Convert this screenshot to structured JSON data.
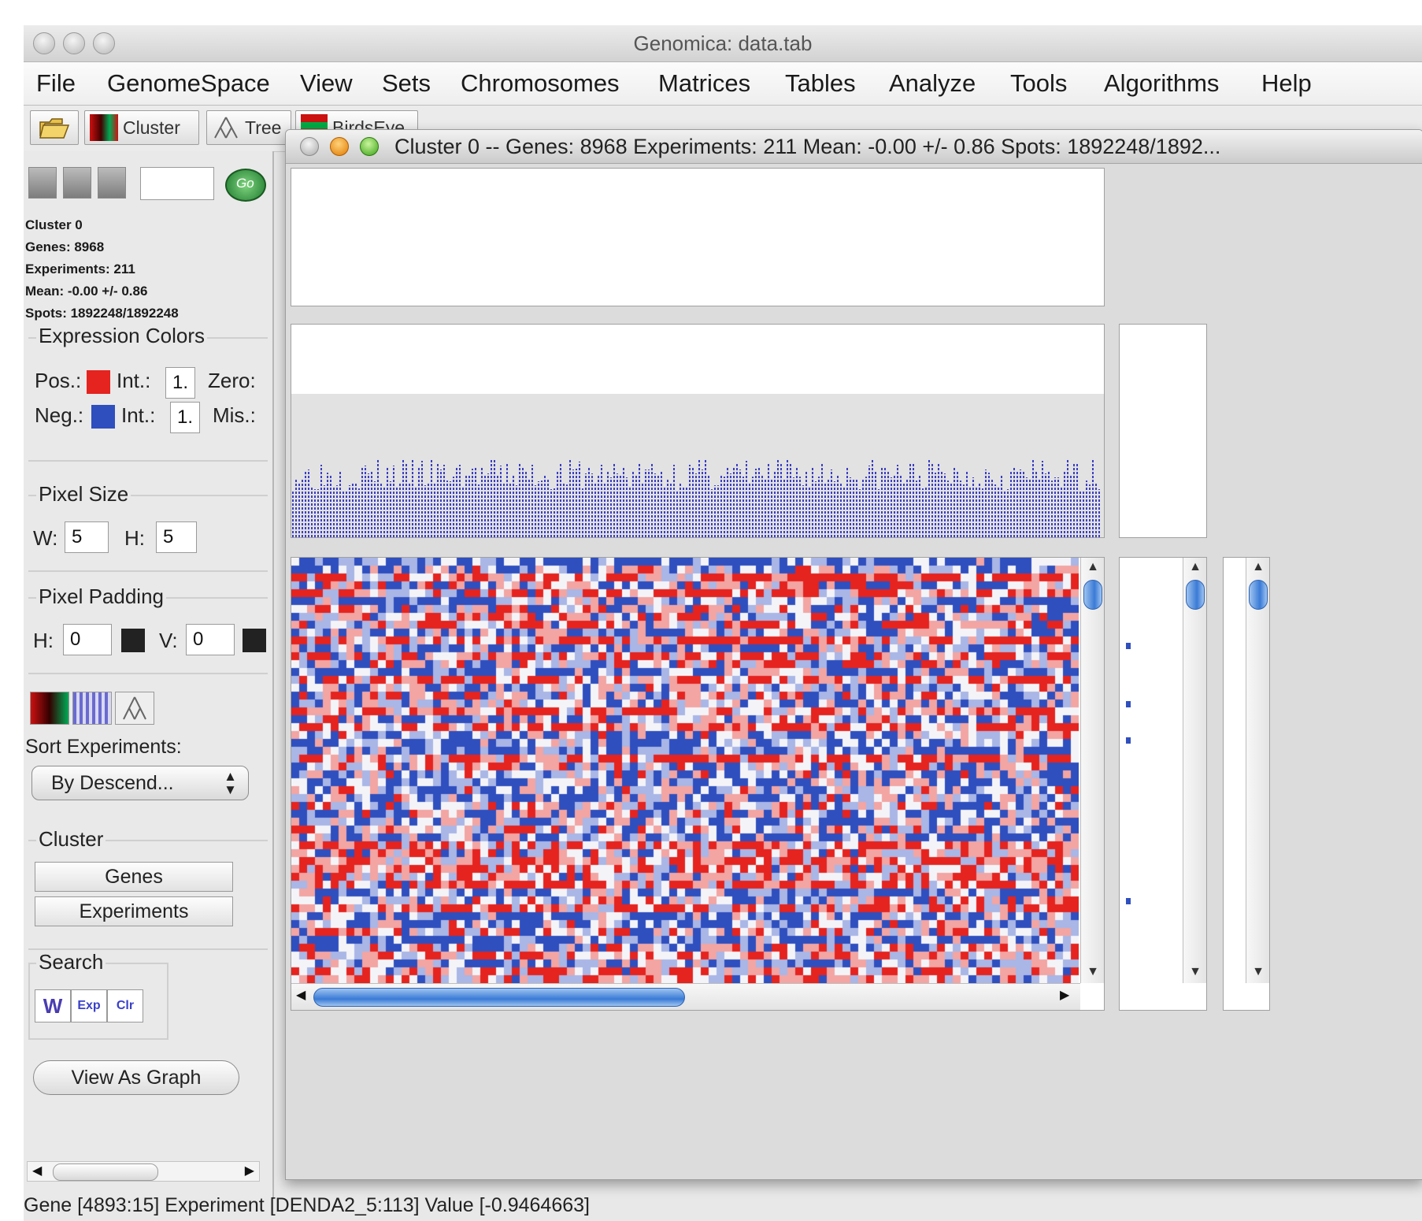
{
  "window": {
    "title": "Genomica: data.tab"
  },
  "menu": [
    "File",
    "GenomeSpace",
    "View",
    "Sets",
    "Chromosomes",
    "Matrices",
    "Tables",
    "Analyze",
    "Tools",
    "Algorithms",
    "Help"
  ],
  "toolbar": {
    "open_icon": "folder-open-icon",
    "cluster_label": "Cluster",
    "tree_label": "Tree",
    "birdseye_label": "BirdsEye"
  },
  "left_panel": {
    "cluster_info": {
      "name": "Cluster 0",
      "genes": "Genes: 8968",
      "experiments": "Experiments: 211",
      "mean": "Mean: -0.00 +/- 0.86",
      "spots": "Spots: 1892248/1892248"
    },
    "expression_colors": {
      "title": "Expression Colors",
      "pos_label": "Pos.:",
      "pos_color": "#e5231f",
      "pos_int_label": "Int.:",
      "pos_int_value": "1.",
      "zero_label": "Zero:",
      "neg_label": "Neg.:",
      "neg_color": "#2f4fbf",
      "neg_int_label": "Int.:",
      "neg_int_value": "1.",
      "mis_label": "Mis.:"
    },
    "pixel_size": {
      "title": "Pixel Size",
      "w_label": "W:",
      "w_value": "5",
      "h_label": "H:",
      "h_value": "5"
    },
    "pixel_padding": {
      "title": "Pixel Padding",
      "h_label": "H:",
      "h_value": "0",
      "v_label": "V:",
      "v_value": "0"
    },
    "sort_experiments": {
      "label": "Sort Experiments:",
      "selected": "By Descend..."
    },
    "cluster_group": {
      "title": "Cluster",
      "genes_button": "Genes",
      "experiments_button": "Experiments"
    },
    "search_group": {
      "title": "Search"
    },
    "view_as_graph": "View As Graph"
  },
  "cluster_window": {
    "title": "Cluster 0 -- Genes: 8968 Experiments: 211 Mean: -0.00 +/- 0.86 Spots: 1892248/1892..."
  },
  "heatmap": {
    "positive_color": "#e5231f",
    "negative_color": "#2f4fbf"
  },
  "status_bar": "Gene [4893:15] Experiment [DENDA2_5:113] Value [-0.9464663]"
}
